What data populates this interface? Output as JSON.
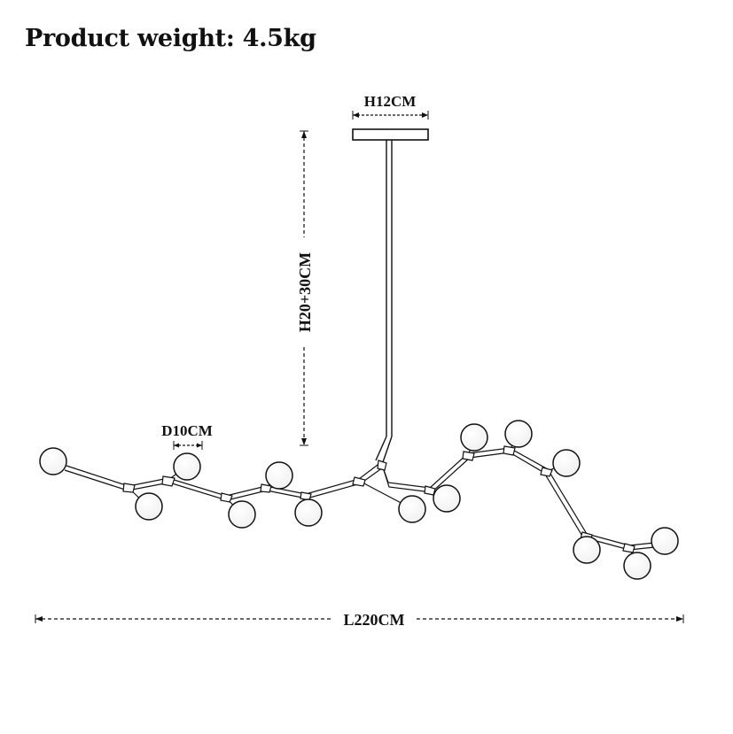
{
  "title": "Product weight: 4.5kg",
  "dimensions": {
    "canopy_width": "H12CM",
    "rod_height": "H20+30CM",
    "globe_diameter": "D10CM",
    "total_length": "L220CM"
  },
  "colors": {
    "line": "#111111",
    "background": "#ffffff"
  }
}
